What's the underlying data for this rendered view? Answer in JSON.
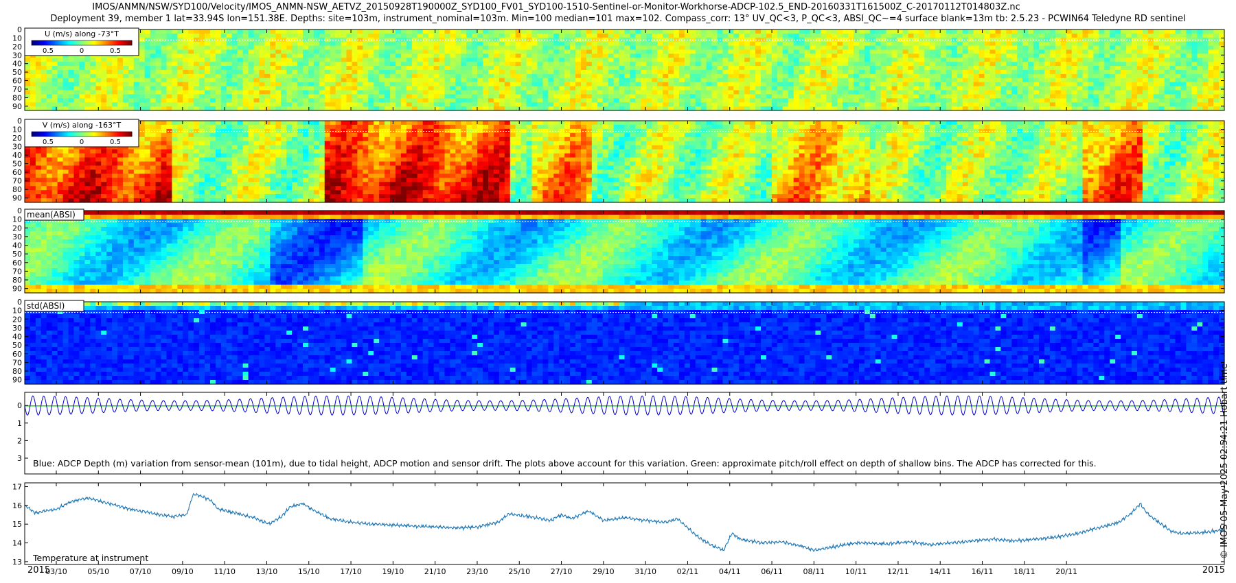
{
  "title_line1": "IMOS/ANMN/NSW/SYD100/Velocity/IMOS_ANMN-NSW_AETVZ_20150928T190000Z_SYD100_FV01_SYD100-1510-Sentinel-or-Monitor-Workhorse-ADCP-102.5_END-20160331T161500Z_C-20170112T014803Z.nc",
  "title_line2": "Deployment 39, member 1 lat=33.94S lon=151.38E. Depths: site=103m, instrument_nominal=103m. Min=100 median=101 max=102. Compass_corr: 13° UV_QC<3, P_QC<3, ABSI_QC~=4 surface blank=13m tb: 2.5.23 - PCWIN64 Teledyne RD sentinel",
  "side_note": "© IMOS 05-May-2025 02:54:21 Hobart time",
  "colors": {
    "depth_line": "#0000cc",
    "pitch_roll_line": "#22cc22",
    "temperature_line": "#1f77b4",
    "frame": "#000000"
  },
  "chart_data": [
    {
      "type": "heatmap",
      "label": "U (m/s) along -73°T",
      "colorbar_ticks": [
        "0.5",
        "0",
        "0.5"
      ],
      "yticks": [
        "0",
        "10",
        "20",
        "30",
        "40",
        "50",
        "60",
        "70",
        "80",
        "90"
      ],
      "ylim": [
        0,
        95
      ],
      "colormap": "jet",
      "pattern": {
        "mean": 0.08,
        "amp": 0.15,
        "events": []
      }
    },
    {
      "type": "heatmap",
      "label": "V (m/s) along -163°T",
      "colorbar_ticks": [
        "0.5",
        "0",
        "0.5"
      ],
      "yticks": [
        "0",
        "10",
        "20",
        "30",
        "40",
        "50",
        "60",
        "70",
        "80",
        "90"
      ],
      "ylim": [
        0,
        95
      ],
      "colormap": "jet",
      "pattern": {
        "mean": 0.05,
        "amp": 0.2,
        "events": [
          [
            0.0,
            0.12,
            0.55
          ],
          [
            0.25,
            0.4,
            0.6
          ],
          [
            0.42,
            0.47,
            0.35
          ],
          [
            0.62,
            0.7,
            0.3
          ],
          [
            0.88,
            0.93,
            0.45
          ]
        ]
      }
    },
    {
      "type": "heatmap",
      "label": "mean(ABSI)",
      "yticks": [
        "0",
        "10",
        "20",
        "30",
        "40",
        "50",
        "60",
        "70",
        "80",
        "90"
      ],
      "ylim": [
        0,
        95
      ],
      "colormap": "jet",
      "pattern": {
        "kind": "absi_mean"
      }
    },
    {
      "type": "heatmap",
      "label": "std(ABSI)",
      "yticks": [
        "0",
        "10",
        "20",
        "30",
        "40",
        "50",
        "60",
        "70",
        "80",
        "90"
      ],
      "ylim": [
        0,
        95
      ],
      "colormap": "jet",
      "pattern": {
        "kind": "absi_std"
      }
    },
    {
      "type": "line",
      "annotation": "Blue: ADCP Depth (m) variation from sensor-mean (101m), due to tidal height, ADCP motion and sensor drift. The plots above account for this variation. Green: approximate pitch/roll effect on depth of shallow bins. The ADCP has corrected for this.",
      "yticks": [
        "0",
        "1",
        "2",
        "3"
      ],
      "ylim": [
        -0.75,
        3.9
      ],
      "y_reversed": true,
      "series": [
        {
          "name": "ADCP Depth variation (m)",
          "kind": "tidal",
          "period_days": 0.517,
          "amplitude": 0.55,
          "mean": 0.0
        },
        {
          "name": "Pitch/roll effect",
          "kind": "flat",
          "value": 0.02
        }
      ]
    },
    {
      "type": "line",
      "annotation": "Temperature at instrument",
      "yticks": [
        "13",
        "14",
        "15",
        "16",
        "17"
      ],
      "ylim": [
        12.85,
        17.2
      ],
      "series": [
        {
          "name": "Temperature (°C)",
          "keypoints": [
            [
              0,
              16.0
            ],
            [
              0.5,
              15.6
            ],
            [
              1.5,
              15.8
            ],
            [
              2.2,
              16.2
            ],
            [
              3.0,
              16.4
            ],
            [
              4.0,
              16.1
            ],
            [
              5.0,
              15.8
            ],
            [
              6.0,
              15.6
            ],
            [
              7.0,
              15.4
            ],
            [
              7.7,
              15.5
            ],
            [
              8.0,
              16.6
            ],
            [
              8.4,
              16.5
            ],
            [
              8.8,
              16.3
            ],
            [
              9.2,
              15.8
            ],
            [
              10.0,
              15.6
            ],
            [
              11.0,
              15.3
            ],
            [
              11.6,
              15.0
            ],
            [
              12.2,
              15.4
            ],
            [
              12.6,
              15.9
            ],
            [
              13.2,
              16.1
            ],
            [
              13.8,
              15.7
            ],
            [
              14.5,
              15.3
            ],
            [
              15.5,
              15.1
            ],
            [
              16.5,
              15.0
            ],
            [
              17.5,
              14.95
            ],
            [
              18.5,
              14.9
            ],
            [
              19.5,
              14.85
            ],
            [
              20.5,
              14.8
            ],
            [
              21.5,
              14.85
            ],
            [
              22.5,
              15.1
            ],
            [
              23.0,
              15.55
            ],
            [
              24.0,
              15.4
            ],
            [
              25.0,
              15.2
            ],
            [
              25.5,
              15.5
            ],
            [
              26.0,
              15.3
            ],
            [
              26.8,
              15.7
            ],
            [
              27.5,
              15.2
            ],
            [
              28.5,
              15.35
            ],
            [
              29.5,
              15.2
            ],
            [
              30.5,
              15.1
            ],
            [
              31.0,
              15.3
            ],
            [
              31.5,
              14.8
            ],
            [
              32.0,
              14.3
            ],
            [
              32.6,
              13.9
            ],
            [
              33.2,
              13.6
            ],
            [
              33.6,
              14.5
            ],
            [
              34.0,
              14.2
            ],
            [
              35.0,
              14.0
            ],
            [
              36.0,
              14.05
            ],
            [
              37.0,
              13.8
            ],
            [
              37.5,
              13.6
            ],
            [
              38.5,
              13.8
            ],
            [
              39.5,
              14.0
            ],
            [
              41.0,
              13.95
            ],
            [
              42.0,
              14.05
            ],
            [
              43.0,
              13.9
            ],
            [
              44.0,
              14.0
            ],
            [
              45.0,
              14.1
            ],
            [
              46.0,
              14.2
            ],
            [
              47.0,
              14.1
            ],
            [
              48.0,
              14.2
            ],
            [
              49.0,
              14.3
            ],
            [
              50.0,
              14.5
            ],
            [
              51.0,
              14.8
            ],
            [
              52.0,
              15.1
            ],
            [
              52.6,
              15.6
            ],
            [
              53.0,
              16.1
            ],
            [
              53.4,
              15.5
            ],
            [
              54.0,
              15.0
            ],
            [
              54.5,
              14.6
            ],
            [
              55.0,
              14.5
            ],
            [
              56.0,
              14.55
            ],
            [
              57.0,
              14.7
            ]
          ]
        }
      ]
    }
  ],
  "x_axis": {
    "xlim_days": [
      0,
      57
    ],
    "ticks": [
      {
        "day": 1.5,
        "label": "03/10"
      },
      {
        "day": 3.5,
        "label": "05/10"
      },
      {
        "day": 5.5,
        "label": "07/10"
      },
      {
        "day": 7.5,
        "label": "09/10"
      },
      {
        "day": 9.5,
        "label": "11/10"
      },
      {
        "day": 11.5,
        "label": "13/10"
      },
      {
        "day": 13.5,
        "label": "15/10"
      },
      {
        "day": 15.5,
        "label": "17/10"
      },
      {
        "day": 17.5,
        "label": "19/10"
      },
      {
        "day": 19.5,
        "label": "21/10"
      },
      {
        "day": 21.5,
        "label": "23/10"
      },
      {
        "day": 23.5,
        "label": "25/10"
      },
      {
        "day": 25.5,
        "label": "27/10"
      },
      {
        "day": 27.5,
        "label": "29/10"
      },
      {
        "day": 29.5,
        "label": "31/10"
      },
      {
        "day": 31.5,
        "label": "02/11"
      },
      {
        "day": 33.5,
        "label": "04/11"
      },
      {
        "day": 35.5,
        "label": "06/11"
      },
      {
        "day": 37.5,
        "label": "08/11"
      },
      {
        "day": 39.5,
        "label": "10/11"
      },
      {
        "day": 41.5,
        "label": "12/11"
      },
      {
        "day": 43.5,
        "label": "14/11"
      },
      {
        "day": 45.5,
        "label": "16/11"
      },
      {
        "day": 47.5,
        "label": "18/11"
      },
      {
        "day": 49.5,
        "label": "20/11"
      }
    ],
    "year_left": "2015",
    "year_right": "2015"
  }
}
